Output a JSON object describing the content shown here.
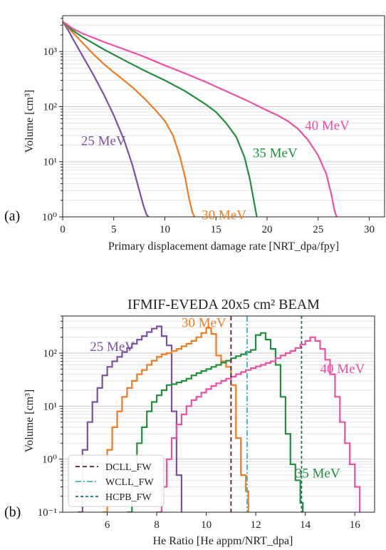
{
  "chart_data": [
    {
      "panel_label": "(a)",
      "type": "line",
      "title": "",
      "xlabel": "Primary displacement damage rate [NRT_dpa/fpy]",
      "ylabel": "Volume [cm³]",
      "xlim": [
        0,
        31.5
      ],
      "ylim_log10": [
        0,
        3.65
      ],
      "x_ticks": [
        0,
        5,
        10,
        15,
        20,
        25,
        30
      ],
      "y_ticks": [
        {
          "value": 1,
          "label": "10⁰"
        },
        {
          "value": 10,
          "label": "10¹"
        },
        {
          "value": 100,
          "label": "10²"
        },
        {
          "value": 1000,
          "label": "10³"
        }
      ],
      "grid": "horizontal log-minor lines",
      "series": [
        {
          "name": "25 MeV",
          "color": "#7b4fa6",
          "label_at": [
            1.8,
            20
          ],
          "points": [
            [
              0,
              3500
            ],
            [
              0.5,
              2500
            ],
            [
              1,
              1700
            ],
            [
              2,
              800
            ],
            [
              3,
              380
            ],
            [
              4,
              170
            ],
            [
              5,
              70
            ],
            [
              6,
              25
            ],
            [
              6.8,
              9
            ],
            [
              7.4,
              3.5
            ],
            [
              7.9,
              1.6
            ],
            [
              8.2,
              1.1
            ],
            [
              8.4,
              1
            ]
          ]
        },
        {
          "name": "30 MeV",
          "color": "#f07a1f",
          "label_at": [
            13.6,
            0.9
          ],
          "points": [
            [
              0,
              3500
            ],
            [
              1,
              2200
            ],
            [
              2,
              1400
            ],
            [
              3,
              900
            ],
            [
              4,
              600
            ],
            [
              5,
              420
            ],
            [
              6,
              300
            ],
            [
              7,
              210
            ],
            [
              8,
              140
            ],
            [
              9,
              90
            ],
            [
              10,
              55
            ],
            [
              10.8,
              30
            ],
            [
              11.5,
              12
            ],
            [
              12,
              5
            ],
            [
              12.4,
              2
            ],
            [
              12.7,
              1.2
            ],
            [
              12.9,
              1
            ]
          ]
        },
        {
          "name": "35 MeV",
          "color": "#1f8f3a",
          "label_at": [
            18.6,
            12
          ],
          "points": [
            [
              0,
              3500
            ],
            [
              1,
              2400
            ],
            [
              2,
              1800
            ],
            [
              4,
              1100
            ],
            [
              6,
              700
            ],
            [
              8,
              450
            ],
            [
              10,
              300
            ],
            [
              12,
              190
            ],
            [
              14,
              110
            ],
            [
              15,
              80
            ],
            [
              16,
              50
            ],
            [
              17,
              28
            ],
            [
              17.8,
              12
            ],
            [
              18.3,
              5
            ],
            [
              18.7,
              2
            ],
            [
              19,
              1
            ]
          ]
        },
        {
          "name": "40 MeV",
          "color": "#ee4fa3",
          "label_at": [
            23.7,
            38
          ],
          "points": [
            [
              0,
              3500
            ],
            [
              1,
              2600
            ],
            [
              2,
              2100
            ],
            [
              4,
              1500
            ],
            [
              6,
              1100
            ],
            [
              8,
              800
            ],
            [
              10,
              560
            ],
            [
              12,
              400
            ],
            [
              14,
              280
            ],
            [
              16,
              190
            ],
            [
              18,
              130
            ],
            [
              20,
              85
            ],
            [
              21,
              70
            ],
            [
              22,
              55
            ],
            [
              23,
              40
            ],
            [
              24,
              25
            ],
            [
              25,
              13
            ],
            [
              25.8,
              6
            ],
            [
              26.3,
              2.5
            ],
            [
              26.6,
              1.3
            ],
            [
              26.8,
              1
            ]
          ]
        }
      ]
    },
    {
      "panel_label": "(b)",
      "type": "line",
      "title": "IFMIF-EVEDA 20x5 cm² BEAM",
      "xlabel": "He Ratio [He appm/NRT_dpa]",
      "ylabel": "Volume [cm³]",
      "xlim": [
        4.2,
        16.8
      ],
      "ylim_log10": [
        -1,
        2.7
      ],
      "x_ticks": [
        6,
        8,
        10,
        12,
        14,
        16
      ],
      "y_ticks": [
        {
          "value": 0.1,
          "label": "10⁻¹"
        },
        {
          "value": 1,
          "label": "10⁰"
        },
        {
          "value": 10,
          "label": "10¹"
        },
        {
          "value": 100,
          "label": "10²"
        }
      ],
      "grid": "horizontal log-minor lines",
      "legend_position": "bottom-left",
      "reference_lines": [
        {
          "name": "DCLL_FW",
          "x": 11.0,
          "color": "#5a1a3c",
          "dash": "6,4"
        },
        {
          "name": "WCLL_FW",
          "x": 11.65,
          "color": "#3fb3c6",
          "dash": "8,3,2,3"
        },
        {
          "name": "HCPB_FW",
          "x": 13.85,
          "color": "#1a6f7a",
          "dash": "4,3"
        }
      ],
      "series": [
        {
          "name": "25 MeV",
          "color": "#7b4fa6",
          "label_at": [
            5.3,
            110
          ],
          "steps": [
            [
              4.8,
              0.1
            ],
            [
              5.0,
              1.5
            ],
            [
              5.2,
              5
            ],
            [
              5.4,
              12
            ],
            [
              5.6,
              22
            ],
            [
              5.8,
              38
            ],
            [
              6.0,
              55
            ],
            [
              6.2,
              70
            ],
            [
              6.4,
              85
            ],
            [
              6.6,
              105
            ],
            [
              6.8,
              125
            ],
            [
              7.0,
              150
            ],
            [
              7.2,
              180
            ],
            [
              7.4,
              210
            ],
            [
              7.6,
              250
            ],
            [
              7.8,
              290
            ],
            [
              8.0,
              320
            ],
            [
              8.2,
              210
            ],
            [
              8.4,
              140
            ],
            [
              8.6,
              8
            ],
            [
              8.8,
              0.5
            ],
            [
              9.0,
              0.1
            ]
          ]
        },
        {
          "name": "30 MeV",
          "color": "#f07a1f",
          "label_at": [
            9.0,
            310
          ],
          "steps": [
            [
              5.8,
              0.1
            ],
            [
              6.0,
              1.5
            ],
            [
              6.2,
              4
            ],
            [
              6.4,
              8
            ],
            [
              6.6,
              15
            ],
            [
              6.8,
              22
            ],
            [
              7.0,
              30
            ],
            [
              7.2,
              40
            ],
            [
              7.4,
              48
            ],
            [
              7.6,
              60
            ],
            [
              7.8,
              72
            ],
            [
              8.0,
              85
            ],
            [
              8.2,
              95
            ],
            [
              8.4,
              100
            ],
            [
              8.6,
              110
            ],
            [
              8.8,
              120
            ],
            [
              9.0,
              135
            ],
            [
              9.2,
              150
            ],
            [
              9.4,
              170
            ],
            [
              9.6,
              200
            ],
            [
              9.8,
              240
            ],
            [
              10.0,
              300
            ],
            [
              10.2,
              230
            ],
            [
              10.4,
              90
            ],
            [
              10.6,
              70
            ],
            [
              10.8,
              55
            ],
            [
              11.0,
              25
            ],
            [
              11.2,
              2.5
            ],
            [
              11.4,
              0.5
            ],
            [
              11.6,
              0.25
            ],
            [
              11.7,
              0.1
            ]
          ]
        },
        {
          "name": "35 MeV",
          "color": "#1f8f3a",
          "label_at": [
            13.6,
            0.45
          ],
          "steps": [
            [
              6.8,
              0.1
            ],
            [
              7.0,
              0.6
            ],
            [
              7.2,
              2
            ],
            [
              7.4,
              4
            ],
            [
              7.6,
              8
            ],
            [
              7.8,
              12
            ],
            [
              8.0,
              16
            ],
            [
              8.2,
              20
            ],
            [
              8.4,
              25
            ],
            [
              8.6,
              26
            ],
            [
              8.8,
              28
            ],
            [
              9.0,
              30
            ],
            [
              9.2,
              33
            ],
            [
              9.4,
              38
            ],
            [
              9.6,
              42
            ],
            [
              9.8,
              46
            ],
            [
              10.0,
              50
            ],
            [
              10.2,
              55
            ],
            [
              10.4,
              60
            ],
            [
              10.6,
              66
            ],
            [
              10.8,
              72
            ],
            [
              11.0,
              80
            ],
            [
              11.2,
              88
            ],
            [
              11.4,
              95
            ],
            [
              11.6,
              105
            ],
            [
              11.8,
              115
            ],
            [
              12.0,
              220
            ],
            [
              12.2,
              240
            ],
            [
              12.4,
              180
            ],
            [
              12.6,
              120
            ],
            [
              12.8,
              60
            ],
            [
              13.0,
              15
            ],
            [
              13.2,
              3
            ],
            [
              13.4,
              0.8
            ],
            [
              13.6,
              0.4
            ],
            [
              13.8,
              0.15
            ],
            [
              13.9,
              0.1
            ]
          ]
        },
        {
          "name": "40 MeV",
          "color": "#ee4fa3",
          "label_at": [
            14.6,
            42
          ],
          "steps": [
            [
              8.0,
              0.1
            ],
            [
              8.2,
              0.3
            ],
            [
              8.4,
              1
            ],
            [
              8.6,
              2.5
            ],
            [
              8.8,
              4.5
            ],
            [
              9.0,
              7
            ],
            [
              9.2,
              10
            ],
            [
              9.4,
              13
            ],
            [
              9.6,
              15
            ],
            [
              9.8,
              18
            ],
            [
              10.0,
              21
            ],
            [
              10.2,
              24
            ],
            [
              10.4,
              27
            ],
            [
              10.6,
              30
            ],
            [
              10.8,
              33
            ],
            [
              11.0,
              36
            ],
            [
              11.2,
              40
            ],
            [
              11.4,
              44
            ],
            [
              11.6,
              48
            ],
            [
              11.8,
              52
            ],
            [
              12.0,
              56
            ],
            [
              12.2,
              60
            ],
            [
              12.4,
              65
            ],
            [
              12.6,
              70
            ],
            [
              12.8,
              80
            ],
            [
              13.0,
              90
            ],
            [
              13.2,
              100
            ],
            [
              13.4,
              110
            ],
            [
              13.6,
              125
            ],
            [
              13.8,
              145
            ],
            [
              14.0,
              170
            ],
            [
              14.2,
              200
            ],
            [
              14.4,
              170
            ],
            [
              14.6,
              120
            ],
            [
              14.8,
              75
            ],
            [
              15.0,
              40
            ],
            [
              15.2,
              15
            ],
            [
              15.4,
              5
            ],
            [
              15.6,
              2
            ],
            [
              15.8,
              0.8
            ],
            [
              16.0,
              0.3
            ],
            [
              16.2,
              0.1
            ]
          ]
        }
      ]
    }
  ]
}
